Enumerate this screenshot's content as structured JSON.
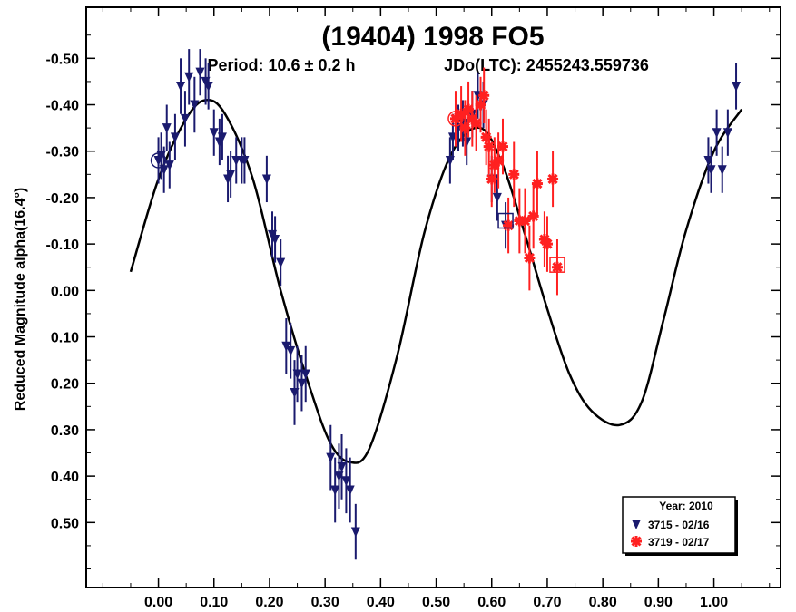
{
  "chart_data": {
    "type": "scatter",
    "title": "(19404) 1998 FO5",
    "subtitle_period": "Period: 10.6 ± 0.2 h",
    "subtitle_epoch": "JDo(LTC): 2455243.559736",
    "xlabel": "",
    "ylabel": "Reduced Magnitude alpha(16.4°)",
    "xlim": [
      -0.13,
      1.12
    ],
    "ylim": [
      0.64,
      -0.61
    ],
    "y_inverted": true,
    "x_ticks": [
      0.0,
      0.1,
      0.2,
      0.3,
      0.4,
      0.5,
      0.6,
      0.7,
      0.8,
      0.9,
      1.0
    ],
    "x_tick_labels": [
      "0.00",
      "0.10",
      "0.20",
      "0.30",
      "0.40",
      "0.50",
      "0.60",
      "0.70",
      "0.80",
      "0.90",
      "1.00"
    ],
    "y_ticks": [
      -0.5,
      -0.4,
      -0.3,
      -0.2,
      -0.1,
      0.0,
      0.1,
      0.2,
      0.3,
      0.4,
      0.5
    ],
    "y_tick_labels": [
      "-0.50",
      "-0.40",
      "-0.30",
      "-0.20",
      "-0.10",
      "0.00",
      "0.10",
      "0.20",
      "0.30",
      "0.40",
      "0.50"
    ],
    "grid": false,
    "legend": {
      "placement": "bottom-right",
      "title": "Year: 2010",
      "entries": [
        {
          "label": "3715 - 02/16",
          "color": "#1a1a6e",
          "marker": "triangle-down"
        },
        {
          "label": "3719 - 02/17",
          "color": "#ff2020",
          "marker": "asterisk"
        }
      ]
    },
    "fit_curve": {
      "color": "#000000",
      "x": [
        -0.05,
        0.0,
        0.05,
        0.085,
        0.12,
        0.17,
        0.22,
        0.27,
        0.31,
        0.345,
        0.38,
        0.43,
        0.48,
        0.53,
        0.58,
        0.62,
        0.66,
        0.7,
        0.74,
        0.78,
        0.83,
        0.87,
        0.91,
        0.95,
        1.0,
        1.05
      ],
      "y": [
        -0.04,
        -0.24,
        -0.37,
        -0.41,
        -0.38,
        -0.24,
        0.0,
        0.2,
        0.33,
        0.37,
        0.34,
        0.14,
        -0.13,
        -0.3,
        -0.35,
        -0.27,
        -0.12,
        0.04,
        0.18,
        0.26,
        0.29,
        0.24,
        0.06,
        -0.13,
        -0.3,
        -0.39
      ]
    },
    "series": [
      {
        "name": "3715 - 02/16",
        "color": "#1a1a6e",
        "marker": "triangle-down",
        "points": [
          {
            "x": 0.0,
            "y": -0.28,
            "err": 0.05
          },
          {
            "x": 0.005,
            "y": -0.29,
            "err": 0.05
          },
          {
            "x": 0.01,
            "y": -0.26,
            "err": 0.05
          },
          {
            "x": 0.015,
            "y": -0.35,
            "err": 0.05
          },
          {
            "x": 0.02,
            "y": -0.27,
            "err": 0.05
          },
          {
            "x": 0.03,
            "y": -0.33,
            "err": 0.05
          },
          {
            "x": 0.04,
            "y": -0.44,
            "err": 0.06
          },
          {
            "x": 0.048,
            "y": -0.37,
            "err": 0.06
          },
          {
            "x": 0.055,
            "y": -0.46,
            "err": 0.06
          },
          {
            "x": 0.065,
            "y": -0.4,
            "err": 0.06
          },
          {
            "x": 0.075,
            "y": -0.47,
            "err": 0.05
          },
          {
            "x": 0.085,
            "y": -0.45,
            "err": 0.05
          },
          {
            "x": 0.09,
            "y": -0.44,
            "err": 0.05
          },
          {
            "x": 0.1,
            "y": -0.34,
            "err": 0.05
          },
          {
            "x": 0.11,
            "y": -0.32,
            "err": 0.05
          },
          {
            "x": 0.115,
            "y": -0.33,
            "err": 0.05
          },
          {
            "x": 0.125,
            "y": -0.24,
            "err": 0.05
          },
          {
            "x": 0.13,
            "y": -0.25,
            "err": 0.05
          },
          {
            "x": 0.14,
            "y": -0.28,
            "err": 0.05
          },
          {
            "x": 0.15,
            "y": -0.28,
            "err": 0.05
          },
          {
            "x": 0.155,
            "y": -0.28,
            "err": 0.05
          },
          {
            "x": 0.195,
            "y": -0.24,
            "err": 0.05
          },
          {
            "x": 0.205,
            "y": -0.12,
            "err": 0.05
          },
          {
            "x": 0.21,
            "y": -0.11,
            "err": 0.05
          },
          {
            "x": 0.22,
            "y": -0.06,
            "err": 0.05
          },
          {
            "x": 0.23,
            "y": 0.12,
            "err": 0.06
          },
          {
            "x": 0.238,
            "y": 0.13,
            "err": 0.06
          },
          {
            "x": 0.245,
            "y": 0.22,
            "err": 0.07
          },
          {
            "x": 0.25,
            "y": 0.18,
            "err": 0.06
          },
          {
            "x": 0.258,
            "y": 0.2,
            "err": 0.06
          },
          {
            "x": 0.265,
            "y": 0.18,
            "err": 0.06
          },
          {
            "x": 0.31,
            "y": 0.36,
            "err": 0.07
          },
          {
            "x": 0.318,
            "y": 0.43,
            "err": 0.07
          },
          {
            "x": 0.325,
            "y": 0.4,
            "err": 0.07
          },
          {
            "x": 0.33,
            "y": 0.38,
            "err": 0.07
          },
          {
            "x": 0.338,
            "y": 0.41,
            "err": 0.07
          },
          {
            "x": 0.345,
            "y": 0.43,
            "err": 0.07
          },
          {
            "x": 0.355,
            "y": 0.52,
            "err": 0.06
          },
          {
            "x": 0.525,
            "y": -0.28,
            "err": 0.05
          },
          {
            "x": 0.53,
            "y": -0.33,
            "err": 0.05
          },
          {
            "x": 0.54,
            "y": -0.35,
            "err": 0.05
          },
          {
            "x": 0.548,
            "y": -0.36,
            "err": 0.05
          },
          {
            "x": 0.555,
            "y": -0.32,
            "err": 0.05
          },
          {
            "x": 0.565,
            "y": -0.38,
            "err": 0.05
          },
          {
            "x": 0.575,
            "y": -0.42,
            "err": 0.05
          },
          {
            "x": 0.585,
            "y": -0.4,
            "err": 0.05
          },
          {
            "x": 0.6,
            "y": -0.24,
            "err": 0.05
          },
          {
            "x": 0.61,
            "y": -0.2,
            "err": 0.05
          },
          {
            "x": 0.625,
            "y": -0.14,
            "err": 0.05
          },
          {
            "x": 0.99,
            "y": -0.28,
            "err": 0.05
          },
          {
            "x": 0.995,
            "y": -0.26,
            "err": 0.05
          },
          {
            "x": 1.005,
            "y": -0.34,
            "err": 0.05
          },
          {
            "x": 1.015,
            "y": -0.26,
            "err": 0.05
          },
          {
            "x": 1.025,
            "y": -0.34,
            "err": 0.05
          },
          {
            "x": 1.04,
            "y": -0.44,
            "err": 0.05
          }
        ]
      },
      {
        "name": "3719 - 02/17",
        "color": "#ff2020",
        "marker": "asterisk",
        "points": [
          {
            "x": 0.535,
            "y": -0.37,
            "err": 0.06
          },
          {
            "x": 0.545,
            "y": -0.38,
            "err": 0.06
          },
          {
            "x": 0.552,
            "y": -0.35,
            "err": 0.06
          },
          {
            "x": 0.558,
            "y": -0.39,
            "err": 0.06
          },
          {
            "x": 0.565,
            "y": -0.37,
            "err": 0.06
          },
          {
            "x": 0.572,
            "y": -0.36,
            "err": 0.06
          },
          {
            "x": 0.58,
            "y": -0.4,
            "err": 0.06
          },
          {
            "x": 0.586,
            "y": -0.42,
            "err": 0.06
          },
          {
            "x": 0.59,
            "y": -0.33,
            "err": 0.06
          },
          {
            "x": 0.595,
            "y": -0.31,
            "err": 0.06
          },
          {
            "x": 0.6,
            "y": -0.24,
            "err": 0.06
          },
          {
            "x": 0.605,
            "y": -0.27,
            "err": 0.06
          },
          {
            "x": 0.612,
            "y": -0.28,
            "err": 0.06
          },
          {
            "x": 0.62,
            "y": -0.31,
            "err": 0.06
          },
          {
            "x": 0.63,
            "y": -0.14,
            "err": 0.06
          },
          {
            "x": 0.64,
            "y": -0.25,
            "err": 0.07
          },
          {
            "x": 0.65,
            "y": -0.15,
            "err": 0.07
          },
          {
            "x": 0.66,
            "y": -0.15,
            "err": 0.07
          },
          {
            "x": 0.668,
            "y": -0.07,
            "err": 0.07
          },
          {
            "x": 0.675,
            "y": -0.16,
            "err": 0.07
          },
          {
            "x": 0.682,
            "y": -0.23,
            "err": 0.07
          },
          {
            "x": 0.695,
            "y": -0.11,
            "err": 0.06
          },
          {
            "x": 0.7,
            "y": -0.1,
            "err": 0.06
          },
          {
            "x": 0.71,
            "y": -0.24,
            "err": 0.06
          },
          {
            "x": 0.718,
            "y": -0.05,
            "err": 0.06
          }
        ]
      }
    ],
    "open_markers": [
      {
        "shape": "circle",
        "x": 0.0,
        "y": -0.28,
        "color": "#1a1a6e"
      },
      {
        "shape": "square",
        "x": 0.625,
        "y": -0.15,
        "color": "#1a1a6e"
      },
      {
        "shape": "circle",
        "x": 0.535,
        "y": -0.37,
        "color": "#ff2020"
      },
      {
        "shape": "square",
        "x": 0.718,
        "y": -0.055,
        "color": "#ff2020"
      }
    ]
  }
}
